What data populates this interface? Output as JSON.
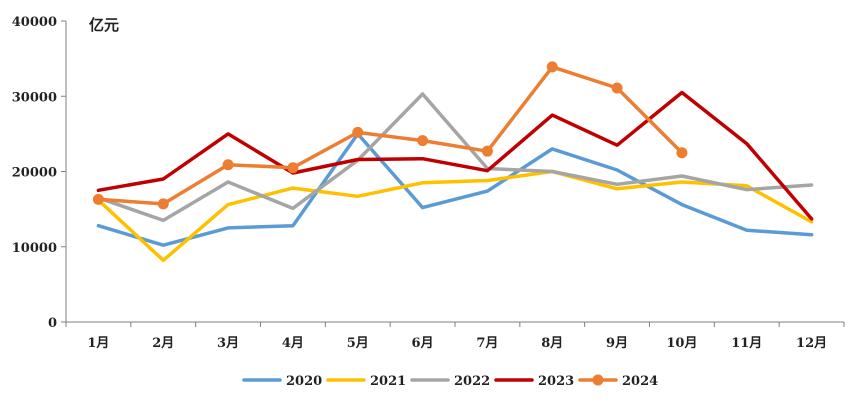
{
  "chart_data": {
    "type": "line",
    "title": "",
    "xlabel": "",
    "ylabel": "亿元",
    "ylim": [
      0,
      40000
    ],
    "yticks": [
      0,
      10000,
      20000,
      30000,
      40000
    ],
    "grid": false,
    "legend_position": "bottom",
    "categories": [
      "1月",
      "2月",
      "3月",
      "4月",
      "5月",
      "6月",
      "7月",
      "8月",
      "9月",
      "10月",
      "11月",
      "12月"
    ],
    "series": [
      {
        "name": "2020",
        "color": "#5b9bd5",
        "markers": false,
        "values": [
          12800,
          10200,
          12500,
          12800,
          25000,
          15200,
          17400,
          23000,
          20200,
          15600,
          12200,
          11600
        ]
      },
      {
        "name": "2021",
        "color": "#ffc000",
        "markers": false,
        "values": [
          16200,
          8200,
          15600,
          17800,
          16700,
          18500,
          18800,
          20000,
          17700,
          18600,
          18100,
          13300
        ]
      },
      {
        "name": "2022",
        "color": "#a5a5a5",
        "markers": false,
        "values": [
          16500,
          13500,
          18600,
          15100,
          21500,
          30300,
          20400,
          20000,
          18300,
          19400,
          17600,
          18200
        ]
      },
      {
        "name": "2023",
        "color": "#c00000",
        "markers": false,
        "values": [
          17500,
          19000,
          25000,
          19800,
          21600,
          21700,
          20100,
          27500,
          23500,
          30500,
          23700,
          13700
        ]
      },
      {
        "name": "2024",
        "color": "#ed7d31",
        "markers": true,
        "values": [
          16300,
          15700,
          20900,
          20500,
          25200,
          24100,
          22700,
          33900,
          31100,
          22500,
          null,
          null
        ]
      }
    ]
  }
}
